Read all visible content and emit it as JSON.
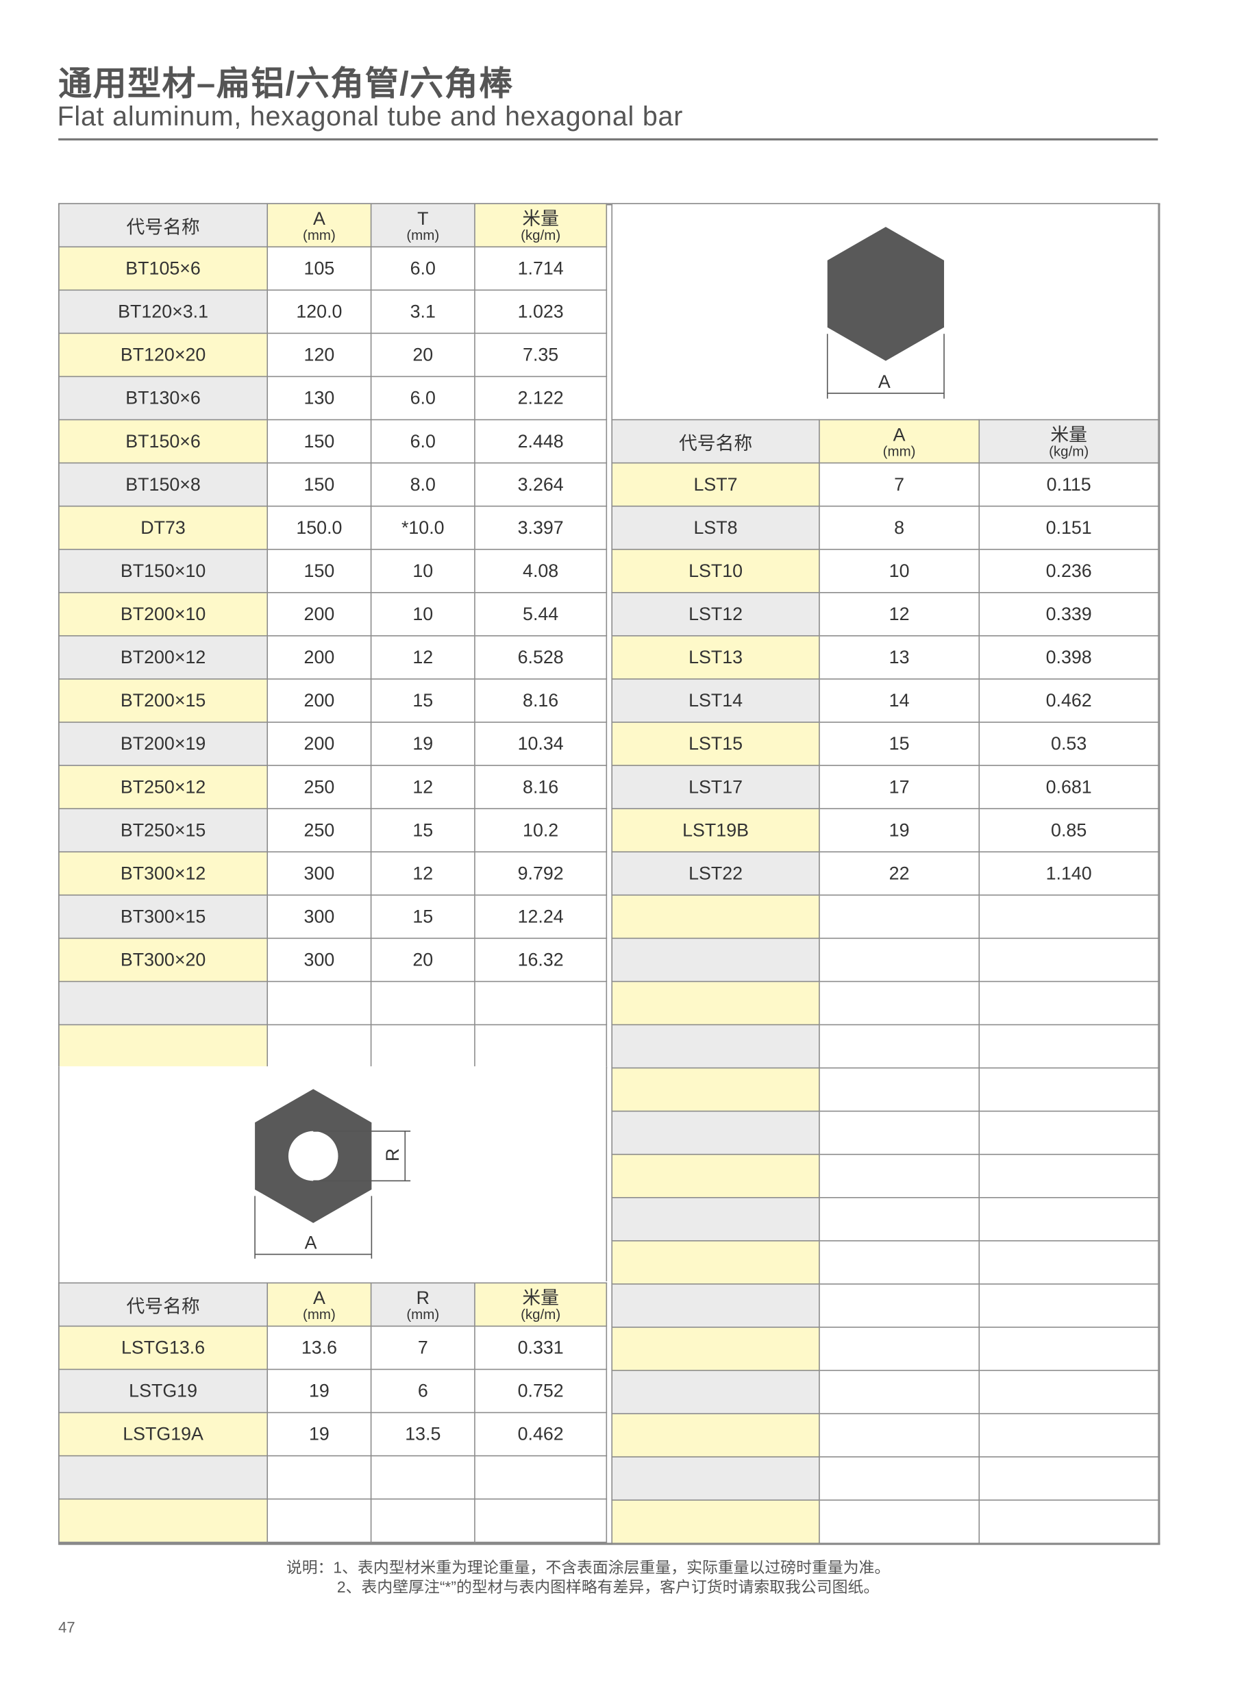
{
  "header": {
    "title": "通用型材–扁铝/六角管/六角棒",
    "subtitle": "Flat aluminum, hexagonal tube and hexagonal bar"
  },
  "flat_table": {
    "columns": [
      {
        "label": "代号名称",
        "unit": ""
      },
      {
        "label": "A",
        "unit": "(mm)"
      },
      {
        "label": "T",
        "unit": "(mm)"
      },
      {
        "label": "米量",
        "unit": "(kg/m)"
      }
    ],
    "rows": [
      [
        "BT105×6",
        "105",
        "6.0",
        "1.714"
      ],
      [
        "BT120×3.1",
        "120.0",
        "3.1",
        "1.023"
      ],
      [
        "BT120×20",
        "120",
        "20",
        "7.35"
      ],
      [
        "BT130×6",
        "130",
        "6.0",
        "2.122"
      ],
      [
        "BT150×6",
        "150",
        "6.0",
        "2.448"
      ],
      [
        "BT150×8",
        "150",
        "8.0",
        "3.264"
      ],
      [
        "DT73",
        "150.0",
        "*10.0",
        "3.397"
      ],
      [
        "BT150×10",
        "150",
        "10",
        "4.08"
      ],
      [
        "BT200×10",
        "200",
        "10",
        "5.44"
      ],
      [
        "BT200×12",
        "200",
        "12",
        "6.528"
      ],
      [
        "BT200×15",
        "200",
        "15",
        "8.16"
      ],
      [
        "BT200×19",
        "200",
        "19",
        "10.34"
      ],
      [
        "BT250×12",
        "250",
        "12",
        "8.16"
      ],
      [
        "BT250×15",
        "250",
        "15",
        "10.2"
      ],
      [
        "BT300×12",
        "300",
        "12",
        "9.792"
      ],
      [
        "BT300×15",
        "300",
        "15",
        "12.24"
      ],
      [
        "BT300×20",
        "300",
        "20",
        "16.32"
      ],
      [
        "",
        "",
        "",
        ""
      ],
      [
        "",
        "",
        "",
        ""
      ]
    ]
  },
  "tube_diagram": {
    "label_a": "A",
    "label_r": "R"
  },
  "tube_table": {
    "columns": [
      {
        "label": "代号名称",
        "unit": ""
      },
      {
        "label": "A",
        "unit": "(mm)"
      },
      {
        "label": "R",
        "unit": "(mm)"
      },
      {
        "label": "米量",
        "unit": "(kg/m)"
      }
    ],
    "rows": [
      [
        "LSTG13.6",
        "13.6",
        "7",
        "0.331"
      ],
      [
        "LSTG19",
        "19",
        "6",
        "0.752"
      ],
      [
        "LSTG19A",
        "19",
        "13.5",
        "0.462"
      ],
      [
        "",
        "",
        "",
        ""
      ],
      [
        "",
        "",
        "",
        ""
      ]
    ]
  },
  "bar_diagram": {
    "label_a": "A"
  },
  "bar_table": {
    "columns": [
      {
        "label": "代号名称",
        "unit": ""
      },
      {
        "label": "A",
        "unit": "(mm)"
      },
      {
        "label": "米量",
        "unit": "(kg/m)"
      }
    ],
    "rows": [
      [
        "LST7",
        "7",
        "0.115"
      ],
      [
        "LST8",
        "8",
        "0.151"
      ],
      [
        "LST10",
        "10",
        "0.236"
      ],
      [
        "LST12",
        "12",
        "0.339"
      ],
      [
        "LST13",
        "13",
        "0.398"
      ],
      [
        "LST14",
        "14",
        "0.462"
      ],
      [
        "LST15",
        "15",
        "0.53"
      ],
      [
        "LST17",
        "17",
        "0.681"
      ],
      [
        "LST19B",
        "19",
        "0.85"
      ],
      [
        "LST22",
        "22",
        "1.140"
      ],
      [
        "",
        "",
        ""
      ],
      [
        "",
        "",
        ""
      ],
      [
        "",
        "",
        ""
      ],
      [
        "",
        "",
        ""
      ],
      [
        "",
        "",
        ""
      ],
      [
        "",
        "",
        ""
      ],
      [
        "",
        "",
        ""
      ],
      [
        "",
        "",
        ""
      ],
      [
        "",
        "",
        ""
      ],
      [
        "",
        "",
        ""
      ],
      [
        "",
        "",
        ""
      ],
      [
        "",
        "",
        ""
      ],
      [
        "",
        "",
        ""
      ],
      [
        "",
        "",
        ""
      ],
      [
        "",
        "",
        ""
      ]
    ]
  },
  "notes": {
    "line1": "说明：1、表内型材米重为理论重量，不含表面涂层重量，实际重量以过磅时重量为准。",
    "line2": "2、表内壁厚注“*”的型材与表内图样略有差异，客户订货时请索取我公司图纸。"
  },
  "page_number": "47",
  "colors": {
    "highlight_yellow": "#fef9c9",
    "header_gray": "#ebebeb",
    "shape_fill": "#595959"
  }
}
